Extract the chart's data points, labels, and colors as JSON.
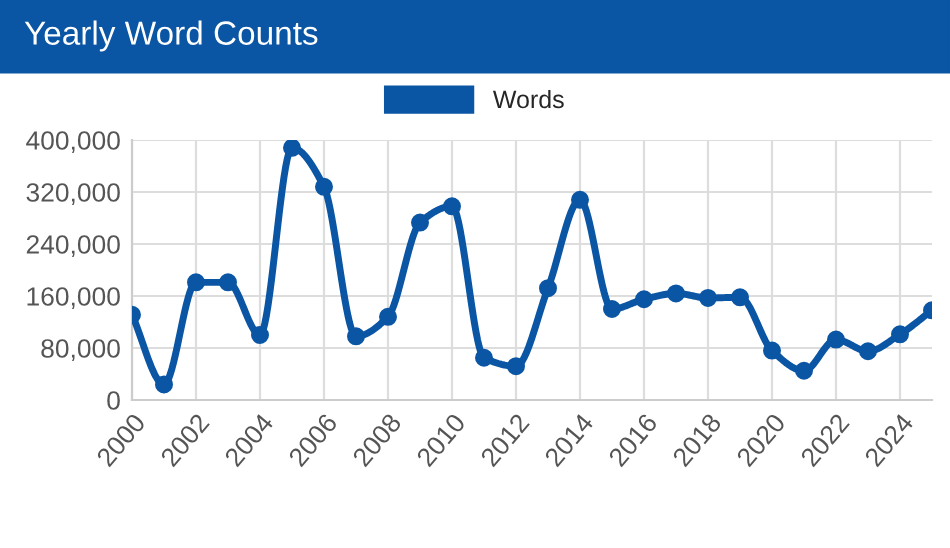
{
  "chart_data": {
    "type": "line",
    "title": "Yearly Word Counts",
    "x": [
      2000,
      2001,
      2002,
      2003,
      2004,
      2005,
      2006,
      2007,
      2008,
      2009,
      2010,
      2011,
      2012,
      2013,
      2014,
      2015,
      2016,
      2017,
      2018,
      2019,
      2020,
      2021,
      2022,
      2023,
      2024,
      2025
    ],
    "series": [
      {
        "name": "Words",
        "color": "#0b56a4",
        "values": [
          131000,
          24000,
          181000,
          181000,
          100000,
          388000,
          328000,
          98000,
          128000,
          273000,
          298000,
          65000,
          52000,
          172000,
          308000,
          140000,
          155000,
          164000,
          157000,
          158000,
          76000,
          45000,
          93000,
          75000,
          101000,
          138000
        ]
      }
    ],
    "xlim": [
      2000,
      2025
    ],
    "xticks": [
      2000,
      2002,
      2004,
      2006,
      2008,
      2010,
      2012,
      2014,
      2016,
      2018,
      2020,
      2022,
      2024
    ],
    "ylim": [
      0,
      400000
    ],
    "yticks": [
      {
        "value": 0,
        "label": "0"
      },
      {
        "value": 80000,
        "label": "80,000"
      },
      {
        "value": 160000,
        "label": "160,000"
      },
      {
        "value": 240000,
        "label": "240,000"
      },
      {
        "value": 320000,
        "label": "320,000"
      },
      {
        "value": 400000,
        "label": "400,000"
      }
    ],
    "grid": true,
    "legend": "top",
    "marker": "circle",
    "line_style": "solid"
  }
}
